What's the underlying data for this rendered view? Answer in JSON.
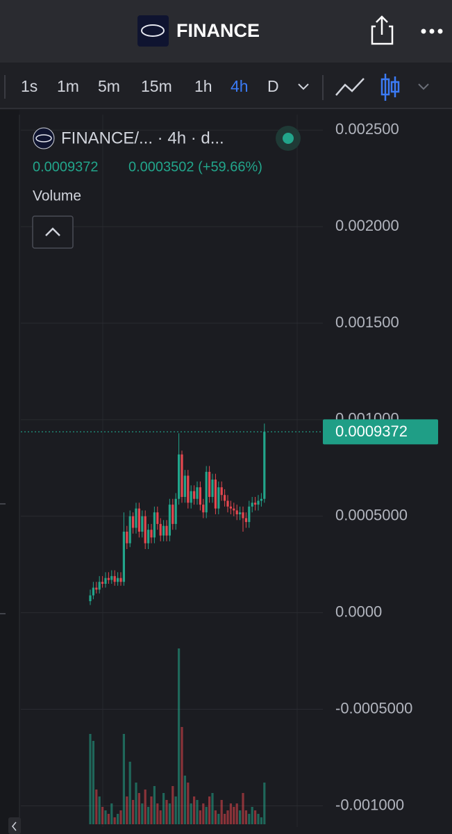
{
  "header": {
    "title": "FINANCE"
  },
  "toolbar": {
    "intervals": [
      "1s",
      "1m",
      "5m",
      "15m",
      "1h",
      "4h",
      "D"
    ]
  },
  "legend": {
    "symbol": "FINANCE/... · 4h · d...",
    "change": "0.0003502 (+59.66%)",
    "indicator": "Volume"
  },
  "chart_data": {
    "type": "candlestick",
    "ylim": [
      -0.00111,
      0.00258
    ],
    "yticks": [
      {
        "value": 0.0025,
        "label": "0.002500"
      },
      {
        "value": 0.002,
        "label": "0.002000"
      },
      {
        "value": 0.0015,
        "label": "0.001500"
      },
      {
        "value": 0.001,
        "label": "0.001000"
      },
      {
        "value": 0.0005,
        "label": "0.0005000"
      },
      {
        "value": 0,
        "label": "0.0000"
      },
      {
        "value": -0.0005,
        "label": "-0.0005000"
      },
      {
        "value": -0.001,
        "label": "-0.001000"
      }
    ],
    "grid": true,
    "up_color": "#22a58b",
    "down_color": "#e5474f",
    "last_price": 0.0009372,
    "open": [
      6e-05,
      9e-05,
      0.00013,
      0.00012,
      0.00016,
      0.00015,
      0.00018,
      0.00017,
      0.00019,
      0.00016,
      0.00018,
      0.00016,
      0.00042,
      0.00036,
      0.0005,
      0.00044,
      0.00054,
      0.00042,
      0.0005,
      0.00036,
      0.00043,
      0.00039,
      0.00052,
      0.00046,
      0.0004,
      0.00045,
      0.0004,
      0.00056,
      0.00046,
      0.00059,
      0.00082,
      0.0006,
      0.00071,
      0.00057,
      0.00063,
      0.00059,
      0.00065,
      0.00056,
      0.00052,
      0.00073,
      0.0006,
      0.00069,
      0.00054,
      0.00065,
      0.00061,
      0.00058,
      0.00055,
      0.00054,
      0.00053,
      0.00051,
      0.00052,
      0.00049,
      0.00047,
      0.00055,
      0.00057,
      0.00056,
      0.00058,
      0.00059
    ],
    "high": [
      0.00012,
      0.00016,
      0.00016,
      0.00019,
      0.00019,
      0.00021,
      0.00021,
      0.00022,
      0.00022,
      0.00021,
      0.00021,
      0.00052,
      0.00045,
      0.00053,
      0.00052,
      0.00057,
      0.00057,
      0.00053,
      0.00053,
      0.00046,
      0.00046,
      0.00055,
      0.00055,
      0.00049,
      0.00048,
      0.00048,
      0.00059,
      0.00059,
      0.00062,
      0.00093,
      0.00084,
      0.00074,
      0.00074,
      0.00066,
      0.00066,
      0.00068,
      0.00068,
      0.00059,
      0.00076,
      0.00076,
      0.00072,
      0.00072,
      0.00068,
      0.00068,
      0.00064,
      0.00061,
      0.00058,
      0.00057,
      0.00056,
      0.00055,
      0.00055,
      0.00052,
      0.00058,
      0.0006,
      0.0006,
      0.00061,
      0.00062,
      0.00098
    ],
    "low": [
      4e-05,
      7e-05,
      0.0001,
      0.0001,
      0.00013,
      0.00013,
      0.00015,
      0.00015,
      0.00014,
      0.00014,
      0.00014,
      0.00014,
      0.00033,
      0.00034,
      0.00041,
      0.00041,
      0.00039,
      0.00039,
      0.00033,
      0.00033,
      0.00036,
      0.00036,
      0.00043,
      0.00037,
      0.00037,
      0.00037,
      0.00037,
      0.00043,
      0.00043,
      0.00056,
      0.00057,
      0.00057,
      0.00054,
      0.00054,
      0.00056,
      0.00056,
      0.00053,
      0.00049,
      0.00049,
      0.00057,
      0.00057,
      0.00051,
      0.00051,
      0.00058,
      0.00055,
      0.00052,
      0.00051,
      0.0005,
      0.00048,
      0.00048,
      0.00042,
      0.00044,
      0.00044,
      0.00052,
      0.00053,
      0.00053,
      0.00055,
      0.00057
    ],
    "close": [
      9e-05,
      0.00013,
      0.00012,
      0.00016,
      0.00015,
      0.00018,
      0.00017,
      0.00019,
      0.00016,
      0.00018,
      0.00016,
      0.00042,
      0.00036,
      0.0005,
      0.00044,
      0.00054,
      0.00042,
      0.0005,
      0.00036,
      0.00043,
      0.00039,
      0.00052,
      0.00046,
      0.0004,
      0.00045,
      0.0004,
      0.00056,
      0.00046,
      0.00059,
      0.00082,
      0.0006,
      0.00071,
      0.00057,
      0.00063,
      0.00059,
      0.00065,
      0.00056,
      0.00052,
      0.00073,
      0.0006,
      0.00069,
      0.00054,
      0.00065,
      0.00061,
      0.00058,
      0.00055,
      0.00054,
      0.00053,
      0.00051,
      0.00052,
      0.00049,
      0.00047,
      0.00055,
      0.00057,
      0.00056,
      0.00058,
      0.00059,
      0.0009372
    ],
    "volume": [
      130,
      120,
      50,
      40,
      25,
      20,
      15,
      30,
      10,
      15,
      20,
      130,
      40,
      90,
      35,
      60,
      45,
      30,
      50,
      25,
      40,
      55,
      30,
      20,
      45,
      35,
      30,
      55,
      40,
      253,
      140,
      70,
      60,
      30,
      40,
      35,
      20,
      30,
      25,
      40,
      45,
      20,
      15,
      35,
      15,
      20,
      30,
      25,
      30,
      20,
      45,
      20,
      15,
      25,
      20,
      15,
      10,
      60
    ]
  }
}
